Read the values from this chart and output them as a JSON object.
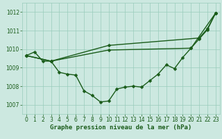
{
  "xlabel": "Graphe pression niveau de la mer (hPa)",
  "background_color": "#cce8e0",
  "grid_color": "#99ccbb",
  "line_color": "#1a5c1a",
  "xlim": [
    -0.5,
    23.5
  ],
  "ylim": [
    1006.5,
    1012.5
  ],
  "yticks": [
    1007,
    1008,
    1009,
    1010,
    1011,
    1012
  ],
  "xticks": [
    0,
    1,
    2,
    3,
    4,
    5,
    6,
    7,
    8,
    9,
    10,
    11,
    12,
    13,
    14,
    15,
    16,
    17,
    18,
    19,
    20,
    21,
    22,
    23
  ],
  "s1_x": [
    0,
    1,
    2,
    3,
    4,
    5,
    6,
    7,
    8,
    9,
    10,
    11,
    12,
    13,
    14,
    15,
    16,
    17,
    18,
    19,
    20,
    21,
    22,
    23
  ],
  "s1_y": [
    1009.65,
    1009.85,
    1009.35,
    1009.35,
    1008.75,
    1008.65,
    1008.6,
    1007.75,
    1007.5,
    1007.15,
    1007.2,
    1007.85,
    1007.95,
    1008.0,
    1007.95,
    1008.3,
    1008.65,
    1009.15,
    1008.95,
    1009.55,
    1010.05,
    1010.55,
    1011.05,
    1011.95
  ],
  "s2_x": [
    0,
    3,
    10,
    20,
    23
  ],
  "s2_y": [
    1009.65,
    1009.35,
    1009.95,
    1010.05,
    1011.95
  ],
  "s3_x": [
    0,
    3,
    10,
    21,
    22,
    23
  ],
  "s3_y": [
    1009.65,
    1009.35,
    1010.2,
    1010.6,
    1011.1,
    1011.95
  ],
  "marker_size": 2.5,
  "line_width": 1.0,
  "tick_fontsize": 5.5,
  "label_fontsize": 6.5
}
